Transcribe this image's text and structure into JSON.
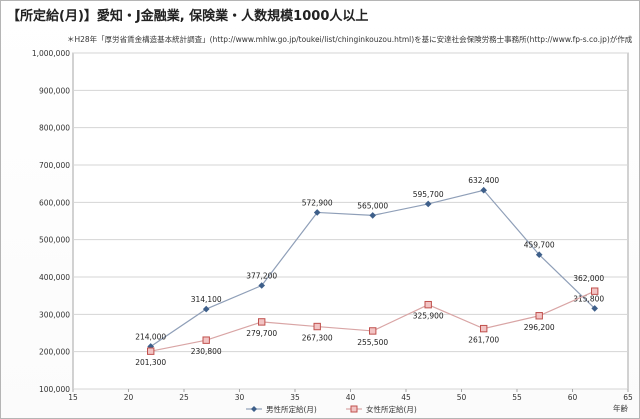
{
  "chart_data": {
    "type": "line",
    "title": "【所定給(月)】愛知・J金融業, 保険業・人数規模1000人以上",
    "subtitle": "＊H28年「厚労省賃金構造基本統計調査」(http://www.mhlw.go.jp/toukei/list/chinginkouzou.html)を基に安達社会保険労務士事務所(http://www.fp-s.co.jp)が作成",
    "xlabel": "年齢",
    "ylabel": "",
    "xlim": [
      15,
      65
    ],
    "ylim": [
      100000,
      1000000
    ],
    "xticks": [
      15,
      20,
      25,
      30,
      35,
      40,
      45,
      50,
      55,
      60,
      65
    ],
    "yticks": [
      100000,
      200000,
      300000,
      400000,
      500000,
      600000,
      700000,
      800000,
      900000,
      1000000
    ],
    "ytick_labels": [
      "100,000",
      "200,000",
      "300,000",
      "400,000",
      "500,000",
      "600,000",
      "700,000",
      "800,000",
      "900,000",
      "1,000,000"
    ],
    "grid": true,
    "legend_position": "bottom",
    "x": [
      22,
      27,
      32,
      37,
      42,
      47,
      52,
      57,
      62
    ],
    "series": [
      {
        "name": "男性所定給(月)",
        "color": "#8f9fb8",
        "marker_color": "#3e5f8a",
        "marker": "diamond",
        "values": [
          214000,
          314100,
          377200,
          572900,
          565000,
          595700,
          632400,
          459700,
          315800
        ],
        "labels": [
          "214,000",
          "314,100",
          "377,200",
          "572,900",
          "565,000",
          "595,700",
          "632,400",
          "459,700",
          "315,800"
        ]
      },
      {
        "name": "女性所定給(月)",
        "color": "#d9a5a5",
        "marker_color": "#c0504d",
        "marker": "square",
        "values": [
          201300,
          230800,
          279700,
          267300,
          255500,
          325900,
          261700,
          296200,
          362000
        ],
        "labels": [
          "201,300",
          "230,800",
          "279,700",
          "267,300",
          "255,500",
          "325,900",
          "261,700",
          "296,200",
          "362,000"
        ]
      }
    ]
  }
}
